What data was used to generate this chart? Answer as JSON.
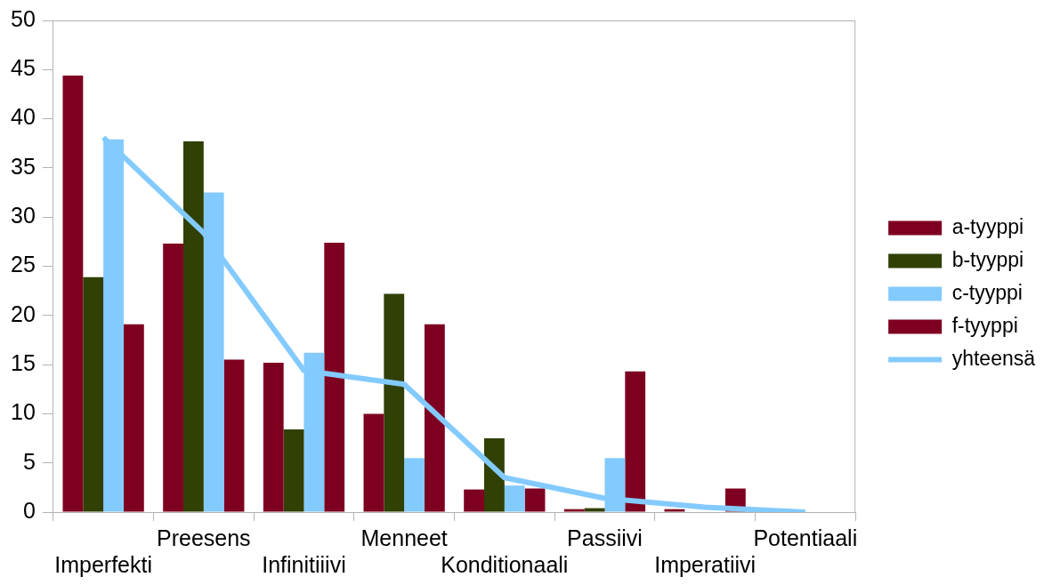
{
  "chart_data": {
    "type": "bar",
    "categories": [
      "Imperfekti",
      "Preesens",
      "Infinitiiivi",
      "Menneet",
      "Konditionaali",
      "Passiivi",
      "Imperatiivi",
      "Potentiaali"
    ],
    "series": [
      {
        "name": "a-tyyppi",
        "color": "#7e0021",
        "values": [
          44.4,
          27.3,
          15.2,
          10.0,
          2.3,
          0.3,
          0.3,
          0
        ]
      },
      {
        "name": "b-tyyppi",
        "color": "#314004",
        "values": [
          23.9,
          37.7,
          8.4,
          22.2,
          7.5,
          0.4,
          0,
          0
        ]
      },
      {
        "name": "c-tyyppi",
        "color": "#83caff",
        "values": [
          37.9,
          32.5,
          16.2,
          5.5,
          2.7,
          5.5,
          0,
          0
        ]
      },
      {
        "name": "f-tyyppi",
        "color": "#7e0021",
        "values": [
          19.1,
          15.5,
          27.4,
          19.1,
          2.4,
          14.3,
          2.4,
          0
        ]
      },
      {
        "name": "yhteensä",
        "type": "line",
        "color": "#83caff",
        "values": [
          38.1,
          28.4,
          14.4,
          13.0,
          3.5,
          1.4,
          0.5,
          0
        ]
      }
    ],
    "ylim": [
      0,
      50
    ],
    "yticks": [
      0,
      5,
      10,
      15,
      20,
      25,
      30,
      35,
      40,
      45,
      50
    ],
    "grid": false,
    "legend": "right",
    "marker": "none"
  }
}
